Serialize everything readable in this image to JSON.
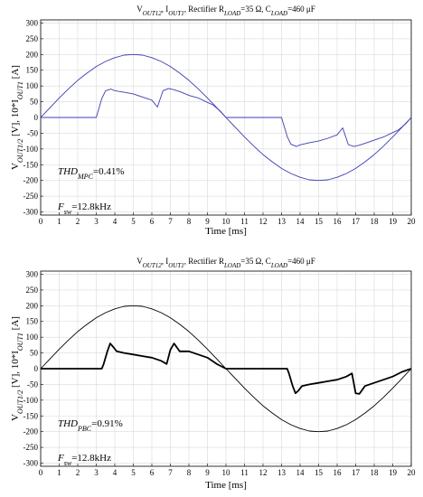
{
  "chart_data": [
    {
      "type": "line",
      "title": "V_OUT12, I_OUT1, Rectifier R_LOAD=35 Ω, C_LOAD=460 μF",
      "xlabel": "Time [ms]",
      "ylabel": "V_OUT1/2 [V], 10*I_OUT1 [A]",
      "xlim": [
        0,
        20
      ],
      "ylim": [
        -310,
        310
      ],
      "xticks": [
        0,
        1,
        2,
        3,
        4,
        5,
        6,
        7,
        8,
        9,
        10,
        11,
        12,
        13,
        14,
        15,
        16,
        17,
        18,
        19,
        20
      ],
      "yticks": [
        300,
        250,
        200,
        150,
        100,
        50,
        0,
        -50,
        -100,
        -150,
        -200,
        -250,
        -300
      ],
      "grid": true,
      "color": "#3c3cb4",
      "annotations": [
        {
          "name": "THD",
          "sub": "MPC",
          "value": "=0.41%"
        },
        {
          "name": "F",
          "sub": "sw",
          "value": "=12.8kHz"
        }
      ],
      "series": [
        {
          "x": [
            0,
            0.5,
            1,
            1.5,
            2,
            2.5,
            3,
            3.5,
            4,
            4.5,
            5,
            5.5,
            6,
            6.5,
            7,
            7.5,
            8,
            8.5,
            9,
            9.5,
            10,
            10.5,
            11,
            11.5,
            12,
            12.5,
            13,
            13.5,
            14,
            14.5,
            15,
            15.5,
            16,
            16.5,
            17,
            17.5,
            18,
            18.5,
            19,
            19.5,
            20
          ],
          "values": [
            0,
            31,
            62,
            91,
            118,
            141,
            162,
            178,
            190,
            198,
            200,
            198,
            190,
            178,
            162,
            141,
            118,
            91,
            62,
            31,
            0,
            -31,
            -62,
            -91,
            -118,
            -141,
            -162,
            -178,
            -190,
            -198,
            -200,
            -198,
            -190,
            -178,
            -162,
            -141,
            -118,
            -91,
            -62,
            -31,
            0
          ]
        },
        {
          "x": [
            0,
            3,
            3.3,
            3.5,
            3.8,
            4,
            4.5,
            5,
            5.5,
            6,
            6.3,
            6.6,
            6.9,
            7.2,
            7.6,
            8,
            8.5,
            9,
            9.3,
            9.7,
            10,
            11,
            12,
            13,
            13.3,
            13.5,
            13.8,
            14,
            14.5,
            15,
            15.5,
            16,
            16.3,
            16.6,
            16.9,
            17.2,
            17.6,
            18,
            18.5,
            19,
            19.3,
            19.7,
            20
          ],
          "values": [
            0,
            0,
            60,
            85,
            90,
            85,
            80,
            75,
            65,
            55,
            33,
            85,
            92,
            88,
            80,
            70,
            62,
            48,
            40,
            20,
            0,
            0,
            0,
            0,
            -60,
            -85,
            -92,
            -87,
            -80,
            -75,
            -66,
            -55,
            -33,
            -86,
            -92,
            -88,
            -80,
            -72,
            -62,
            -48,
            -40,
            -20,
            0
          ]
        }
      ]
    },
    {
      "type": "line",
      "title": "V_OUT12, I_OUT1, Rectifier R_LOAD=35 Ω, C_LOAD=460 μF",
      "xlabel": "Time [ms]",
      "ylabel": "V_OUT1/2 [V], 10*I_OUT1 [A]",
      "xlim": [
        0,
        20
      ],
      "ylim": [
        -310,
        310
      ],
      "xticks": [
        0,
        1,
        2,
        3,
        4,
        5,
        6,
        7,
        8,
        9,
        10,
        11,
        12,
        13,
        14,
        15,
        16,
        17,
        18,
        19,
        20
      ],
      "yticks": [
        300,
        250,
        200,
        150,
        100,
        50,
        0,
        -50,
        -100,
        -150,
        -200,
        -250,
        -300
      ],
      "grid": true,
      "color": "#000000",
      "annotations": [
        {
          "name": "THD",
          "sub": "PBC",
          "value": "=0.91%"
        },
        {
          "name": "F",
          "sub": "sw",
          "value": "=12.8kHz"
        }
      ],
      "series": [
        {
          "x": [
            0,
            0.5,
            1,
            1.5,
            2,
            2.5,
            3,
            3.5,
            4,
            4.5,
            5,
            5.5,
            6,
            6.5,
            7,
            7.5,
            8,
            8.5,
            9,
            9.5,
            10,
            10.5,
            11,
            11.5,
            12,
            12.5,
            13,
            13.5,
            14,
            14.5,
            15,
            15.5,
            16,
            16.5,
            17,
            17.5,
            18,
            18.5,
            19,
            19.5,
            20
          ],
          "values": [
            0,
            31,
            62,
            91,
            118,
            141,
            162,
            178,
            190,
            198,
            200,
            198,
            190,
            178,
            162,
            141,
            118,
            91,
            62,
            31,
            0,
            -31,
            -62,
            -91,
            -118,
            -141,
            -162,
            -178,
            -190,
            -198,
            -200,
            -198,
            -190,
            -178,
            -162,
            -141,
            -118,
            -91,
            -62,
            -31,
            0
          ]
        },
        {
          "x": [
            0,
            3.3,
            3.4,
            3.6,
            3.75,
            3.9,
            4.1,
            4.5,
            5,
            5.5,
            6,
            6.5,
            6.8,
            7,
            7.2,
            7.5,
            8,
            8.5,
            9,
            9.5,
            10,
            11,
            12,
            13,
            13.3,
            13.4,
            13.6,
            13.75,
            13.9,
            14.1,
            14.5,
            15,
            15.5,
            16,
            16.5,
            16.8,
            17,
            17.2,
            17.5,
            18,
            18.5,
            19,
            19.5,
            20
          ],
          "values": [
            0,
            0,
            15,
            55,
            80,
            70,
            55,
            50,
            45,
            40,
            35,
            25,
            15,
            60,
            80,
            55,
            55,
            45,
            35,
            15,
            0,
            0,
            0,
            0,
            0,
            -15,
            -55,
            -78,
            -70,
            -55,
            -50,
            -45,
            -40,
            -35,
            -25,
            -15,
            -78,
            -80,
            -55,
            -45,
            -35,
            -25,
            -10,
            0
          ]
        }
      ]
    }
  ]
}
